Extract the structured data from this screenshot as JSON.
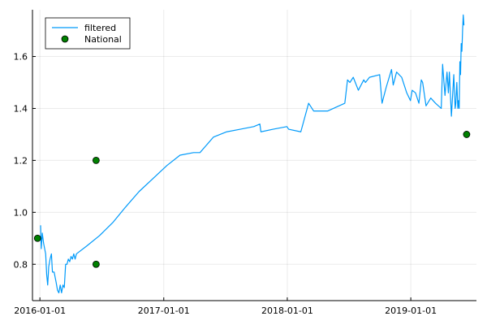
{
  "chart_data": {
    "type": "line",
    "title": "",
    "xlabel": "",
    "ylabel": "",
    "x_axis": {
      "type": "date",
      "range": [
        "2015-12-10",
        "2019-07-14"
      ],
      "ticks": [
        "2016-01-01",
        "2017-01-01",
        "2018-01-01",
        "2019-01-01"
      ]
    },
    "y_axis": {
      "range": [
        0.66,
        1.78
      ],
      "ticks": [
        0.8,
        1.0,
        1.2,
        1.4,
        1.6
      ],
      "tick_labels": [
        "0.8",
        "1.0",
        "1.2",
        "1.4",
        "1.6"
      ]
    },
    "grid": true,
    "legend": {
      "position": "top-left",
      "visible": true
    },
    "series": [
      {
        "name": "filtered",
        "kind": "line",
        "color": "#009AFA",
        "points": [
          [
            "2016-01-03",
            0.95
          ],
          [
            "2016-01-05",
            0.86
          ],
          [
            "2016-01-08",
            0.92
          ],
          [
            "2016-01-12",
            0.88
          ],
          [
            "2016-01-15",
            0.86
          ],
          [
            "2016-01-18",
            0.84
          ],
          [
            "2016-01-21",
            0.76
          ],
          [
            "2016-01-24",
            0.72
          ],
          [
            "2016-01-27",
            0.79
          ],
          [
            "2016-01-31",
            0.82
          ],
          [
            "2016-02-04",
            0.84
          ],
          [
            "2016-02-07",
            0.77
          ],
          [
            "2016-02-12",
            0.77
          ],
          [
            "2016-02-18",
            0.73
          ],
          [
            "2016-02-22",
            0.7
          ],
          [
            "2016-02-26",
            0.69
          ],
          [
            "2016-03-01",
            0.72
          ],
          [
            "2016-03-05",
            0.69
          ],
          [
            "2016-03-09",
            0.72
          ],
          [
            "2016-03-13",
            0.71
          ],
          [
            "2016-03-17",
            0.8
          ],
          [
            "2016-03-21",
            0.8
          ],
          [
            "2016-03-25",
            0.82
          ],
          [
            "2016-03-29",
            0.81
          ],
          [
            "2016-04-02",
            0.83
          ],
          [
            "2016-04-06",
            0.82
          ],
          [
            "2016-04-10",
            0.84
          ],
          [
            "2016-04-14",
            0.82
          ],
          [
            "2016-04-18",
            0.84
          ],
          [
            "2016-05-18",
            0.87
          ],
          [
            "2016-06-25",
            0.91
          ],
          [
            "2016-08-03",
            0.96
          ],
          [
            "2016-09-10",
            1.02
          ],
          [
            "2016-10-20",
            1.08
          ],
          [
            "2016-11-30",
            1.13
          ],
          [
            "2017-01-10",
            1.18
          ],
          [
            "2017-02-18",
            1.22
          ],
          [
            "2017-03-30",
            1.23
          ],
          [
            "2017-04-18",
            1.23
          ],
          [
            "2017-05-28",
            1.29
          ],
          [
            "2017-07-06",
            1.31
          ],
          [
            "2017-08-15",
            1.32
          ],
          [
            "2017-09-24",
            1.33
          ],
          [
            "2017-10-12",
            1.34
          ],
          [
            "2017-10-15",
            1.31
          ],
          [
            "2017-11-20",
            1.32
          ],
          [
            "2017-12-31",
            1.33
          ],
          [
            "2018-01-05",
            1.32
          ],
          [
            "2018-02-10",
            1.31
          ],
          [
            "2018-03-05",
            1.42
          ],
          [
            "2018-03-20",
            1.39
          ],
          [
            "2018-04-30",
            1.39
          ],
          [
            "2018-06-20",
            1.42
          ],
          [
            "2018-06-28",
            1.51
          ],
          [
            "2018-07-05",
            1.5
          ],
          [
            "2018-07-15",
            1.52
          ],
          [
            "2018-07-30",
            1.47
          ],
          [
            "2018-08-15",
            1.51
          ],
          [
            "2018-08-20",
            1.5
          ],
          [
            "2018-09-01",
            1.52
          ],
          [
            "2018-10-01",
            1.53
          ],
          [
            "2018-10-08",
            1.42
          ],
          [
            "2018-10-20",
            1.48
          ],
          [
            "2018-11-05",
            1.55
          ],
          [
            "2018-11-10",
            1.49
          ],
          [
            "2018-11-20",
            1.54
          ],
          [
            "2018-12-05",
            1.52
          ],
          [
            "2018-12-20",
            1.46
          ],
          [
            "2018-12-31",
            1.43
          ],
          [
            "2019-01-05",
            1.47
          ],
          [
            "2019-01-15",
            1.46
          ],
          [
            "2019-01-25",
            1.42
          ],
          [
            "2019-02-01",
            1.51
          ],
          [
            "2019-02-05",
            1.5
          ],
          [
            "2019-02-15",
            1.41
          ],
          [
            "2019-03-01",
            1.44
          ],
          [
            "2019-03-15",
            1.42
          ],
          [
            "2019-04-01",
            1.4
          ],
          [
            "2019-04-05",
            1.57
          ],
          [
            "2019-04-12",
            1.45
          ],
          [
            "2019-04-18",
            1.54
          ],
          [
            "2019-04-22",
            1.46
          ],
          [
            "2019-04-25",
            1.54
          ],
          [
            "2019-05-01",
            1.37
          ],
          [
            "2019-05-05",
            1.46
          ],
          [
            "2019-05-08",
            1.53
          ],
          [
            "2019-05-12",
            1.4
          ],
          [
            "2019-05-14",
            1.42
          ],
          [
            "2019-05-17",
            1.5
          ],
          [
            "2019-05-20",
            1.4
          ],
          [
            "2019-05-22",
            1.43
          ],
          [
            "2019-05-24",
            1.4
          ],
          [
            "2019-05-26",
            1.58
          ],
          [
            "2019-05-28",
            1.53
          ],
          [
            "2019-05-30",
            1.65
          ],
          [
            "2019-06-01",
            1.62
          ],
          [
            "2019-06-03",
            1.7
          ],
          [
            "2019-06-05",
            1.76
          ],
          [
            "2019-06-07",
            1.72
          ]
        ]
      },
      {
        "name": "National",
        "kind": "scatter",
        "color": "#008000",
        "points": [
          [
            "2015-12-25",
            0.9
          ],
          [
            "2016-06-15",
            1.2
          ],
          [
            "2016-06-15",
            0.8
          ],
          [
            "2019-06-15",
            1.3
          ]
        ]
      }
    ]
  }
}
